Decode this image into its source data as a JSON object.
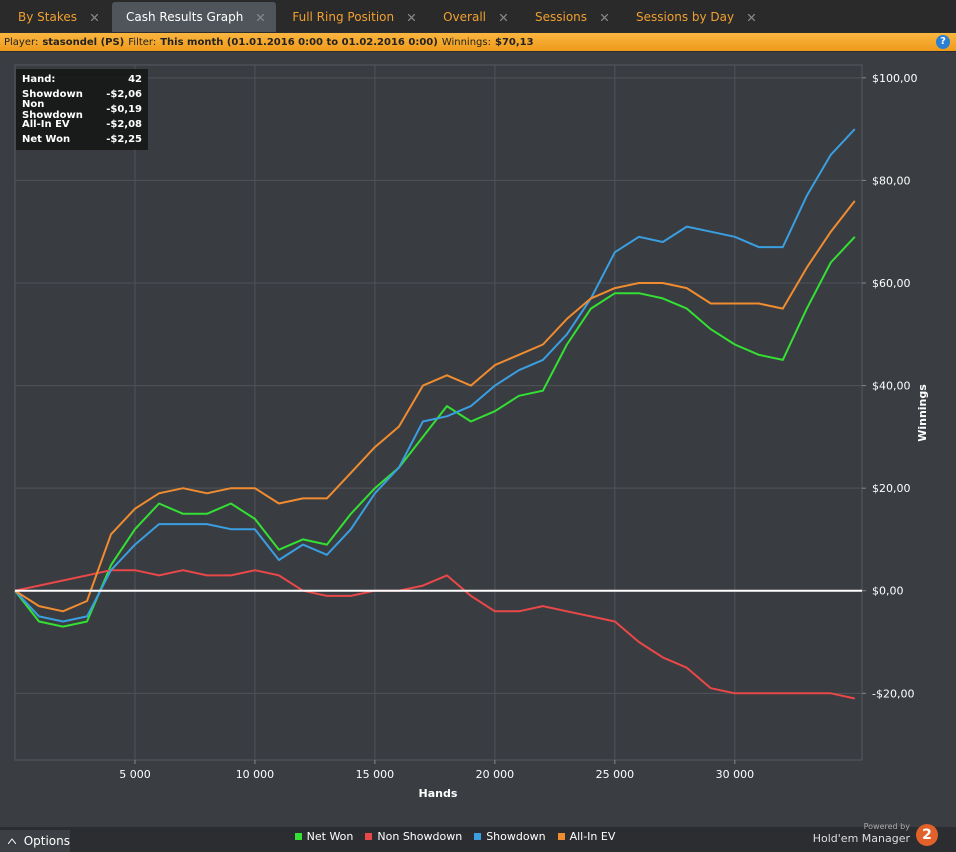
{
  "tabs": [
    "By Stakes",
    "Cash Results Graph",
    "Full Ring Position",
    "Overall",
    "Sessions",
    "Sessions by Day"
  ],
  "active_tab": 1,
  "filter_bar": {
    "player_label": "Player:",
    "player": "stasondel (PS)",
    "filter_label": "Filter:",
    "filter": "This month (01.01.2016 0:00 to 01.02.2016 0:00)",
    "winnings_label": "Winnings:",
    "winnings": "$70,13",
    "help": "?"
  },
  "info_box": {
    "rows": [
      {
        "label": "Hand:",
        "value": "42"
      },
      {
        "label": "Showdown",
        "value": "-$2,06"
      },
      {
        "label": "Non Showdown",
        "value": "-$0,19"
      },
      {
        "label": "All-In EV",
        "value": "-$2,08"
      },
      {
        "label": "Net Won",
        "value": "-$2,25"
      }
    ]
  },
  "chart_data": {
    "type": "line",
    "x_label": "Hands",
    "y_label": "Winnings",
    "x": [
      0,
      1000,
      2000,
      3000,
      4000,
      5000,
      6000,
      7000,
      8000,
      9000,
      10000,
      11000,
      12000,
      13000,
      14000,
      15000,
      16000,
      17000,
      18000,
      19000,
      20000,
      21000,
      22000,
      23000,
      24000,
      25000,
      26000,
      27000,
      28000,
      29000,
      30000,
      31000,
      32000,
      33000,
      34000,
      35000
    ],
    "series": [
      {
        "name": "Net Won",
        "color": "#33e033",
        "values": [
          0,
          -6,
          -7,
          -6,
          5,
          12,
          17,
          15,
          15,
          17,
          14,
          8,
          10,
          9,
          15,
          20,
          24,
          30,
          36,
          33,
          35,
          38,
          39,
          48,
          55,
          58,
          58,
          57,
          55,
          51,
          48,
          46,
          45,
          55,
          64,
          69
        ]
      },
      {
        "name": "Non Showdown",
        "color": "#e84848",
        "values": [
          0,
          1,
          2,
          3,
          4,
          4,
          3,
          4,
          3,
          3,
          4,
          3,
          0,
          -1,
          -1,
          0,
          0,
          1,
          3,
          -1,
          -4,
          -4,
          -3,
          -4,
          -5,
          -6,
          -10,
          -13,
          -15,
          -19,
          -20,
          -20,
          -20,
          -20,
          -20,
          -21
        ]
      },
      {
        "name": "Showdown",
        "color": "#3a9ee0",
        "values": [
          0,
          -5,
          -6,
          -5,
          4,
          9,
          13,
          13,
          13,
          12,
          12,
          6,
          9,
          7,
          12,
          19,
          24,
          33,
          34,
          36,
          40,
          43,
          45,
          50,
          57,
          66,
          69,
          68,
          71,
          70,
          69,
          67,
          67,
          77,
          85,
          90
        ]
      },
      {
        "name": "All-In EV",
        "color": "#f08c30",
        "values": [
          0,
          -3,
          -4,
          -2,
          11,
          16,
          19,
          20,
          19,
          20,
          20,
          17,
          18,
          18,
          23,
          28,
          32,
          40,
          42,
          40,
          44,
          46,
          48,
          53,
          57,
          59,
          60,
          60,
          59,
          56,
          56,
          56,
          55,
          63,
          70,
          76
        ]
      }
    ],
    "xlim": [
      0,
      35300
    ],
    "xticks": [
      {
        "value": 5000,
        "label": "5 000"
      },
      {
        "value": 10000,
        "label": "10 000"
      },
      {
        "value": 15000,
        "label": "15 000"
      },
      {
        "value": 20000,
        "label": "20 000"
      },
      {
        "value": 25000,
        "label": "25 000"
      },
      {
        "value": 30000,
        "label": "30 000"
      }
    ],
    "ylim": [
      -33,
      102.5
    ],
    "yticks": [
      {
        "value": -20,
        "label": "-$20,00"
      },
      {
        "value": 0,
        "label": "$0,00"
      },
      {
        "value": 20,
        "label": "$20,00"
      },
      {
        "value": 40,
        "label": "$40,00"
      },
      {
        "value": 60,
        "label": "$60,00"
      },
      {
        "value": 80,
        "label": "$80,00"
      },
      {
        "value": 100,
        "label": "$100,00"
      }
    ],
    "grid": true
  },
  "footer": {
    "options": "Options",
    "powered_by": "Powered by",
    "brand": "Hold'em Manager",
    "badge": "2"
  }
}
